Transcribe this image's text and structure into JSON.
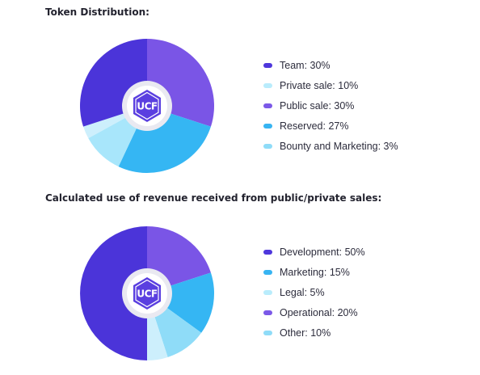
{
  "chart_data": [
    {
      "type": "pie",
      "title": "Token Distribution:",
      "center_logo_text": "UCF",
      "series": [
        {
          "label": "Team: 30%",
          "value": 30,
          "color": "#4b34d9",
          "legend_color": "#4e37dc"
        },
        {
          "label": "Private sale: 10%",
          "value": 10,
          "color": "#a8e6fb",
          "legend_color": "#b9ecfc"
        },
        {
          "label": "Public sale: 30%",
          "value": 30,
          "color": "#7a55e6",
          "legend_color": "#7b59e8"
        },
        {
          "label": "Reserved: 27%",
          "value": 27,
          "color": "#35b6f3",
          "legend_color": "#37b4f2"
        },
        {
          "label": "Bounty and Marketing: 3%",
          "value": 3,
          "color": "#cdeffc",
          "legend_color": "#8fdcf8"
        }
      ],
      "draw_order": [
        2,
        3,
        1,
        4,
        0
      ]
    },
    {
      "type": "pie",
      "title": "Calculated use of revenue received from public/private sales:",
      "center_logo_text": "UCF",
      "series": [
        {
          "label": "Development: 50%",
          "value": 50,
          "color": "#4b34d9",
          "legend_color": "#4e37dc"
        },
        {
          "label": "Marketing: 15%",
          "value": 15,
          "color": "#35b6f3",
          "legend_color": "#37b4f2"
        },
        {
          "label": "Legal: 5%",
          "value": 5,
          "color": "#cdeffc",
          "legend_color": "#b9ecfc"
        },
        {
          "label": "Operational: 20%",
          "value": 20,
          "color": "#7a55e6",
          "legend_color": "#7b59e8"
        },
        {
          "label": "Other: 10%",
          "value": 10,
          "color": "#8fdcf8",
          "legend_color": "#8fdcf8"
        }
      ],
      "draw_order": [
        3,
        1,
        4,
        2,
        0
      ]
    }
  ]
}
